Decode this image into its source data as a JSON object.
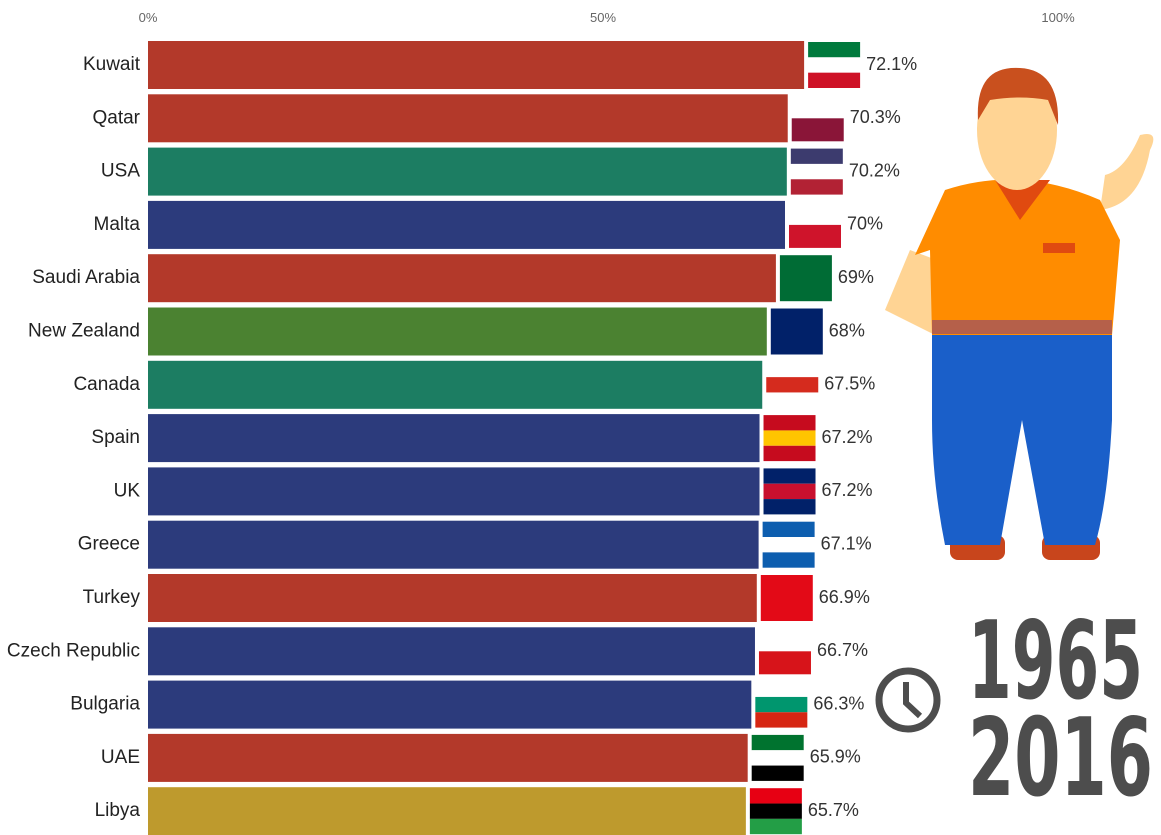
{
  "chart_data": {
    "type": "bar",
    "orientation": "horizontal",
    "categories": [
      "Kuwait",
      "Qatar",
      "USA",
      "Malta",
      "Saudi Arabia",
      "New Zealand",
      "Canada",
      "Spain",
      "UK",
      "Greece",
      "Turkey",
      "Czech Republic",
      "Bulgaria",
      "UAE",
      "Libya"
    ],
    "values": [
      72.1,
      70.3,
      70.2,
      70,
      69,
      68,
      67.5,
      67.2,
      67.2,
      67.1,
      66.9,
      66.7,
      66.3,
      65.9,
      65.7
    ],
    "value_labels": [
      "72.1%",
      "70.3%",
      "70.2%",
      "70%",
      "69%",
      "68%",
      "67.5%",
      "67.2%",
      "67.2%",
      "67.1%",
      "66.9%",
      "66.7%",
      "66.3%",
      "65.9%",
      "65.7%"
    ],
    "colors": [
      "#b3392a",
      "#b3392a",
      "#1c7d62",
      "#2c3b7c",
      "#b3392a",
      "#4b8231",
      "#1c7d62",
      "#2c3b7c",
      "#2c3b7c",
      "#2c3b7c",
      "#b3392a",
      "#2c3b7c",
      "#2c3b7c",
      "#b3392a",
      "#be9a2d"
    ],
    "xlim": [
      0,
      100
    ],
    "xticks": [
      {
        "value": 0,
        "label": "0%"
      },
      {
        "value": 50,
        "label": "50%"
      },
      {
        "value": 100,
        "label": "100%"
      }
    ],
    "grid": false,
    "year_range": [
      "1965",
      "2016"
    ]
  }
}
